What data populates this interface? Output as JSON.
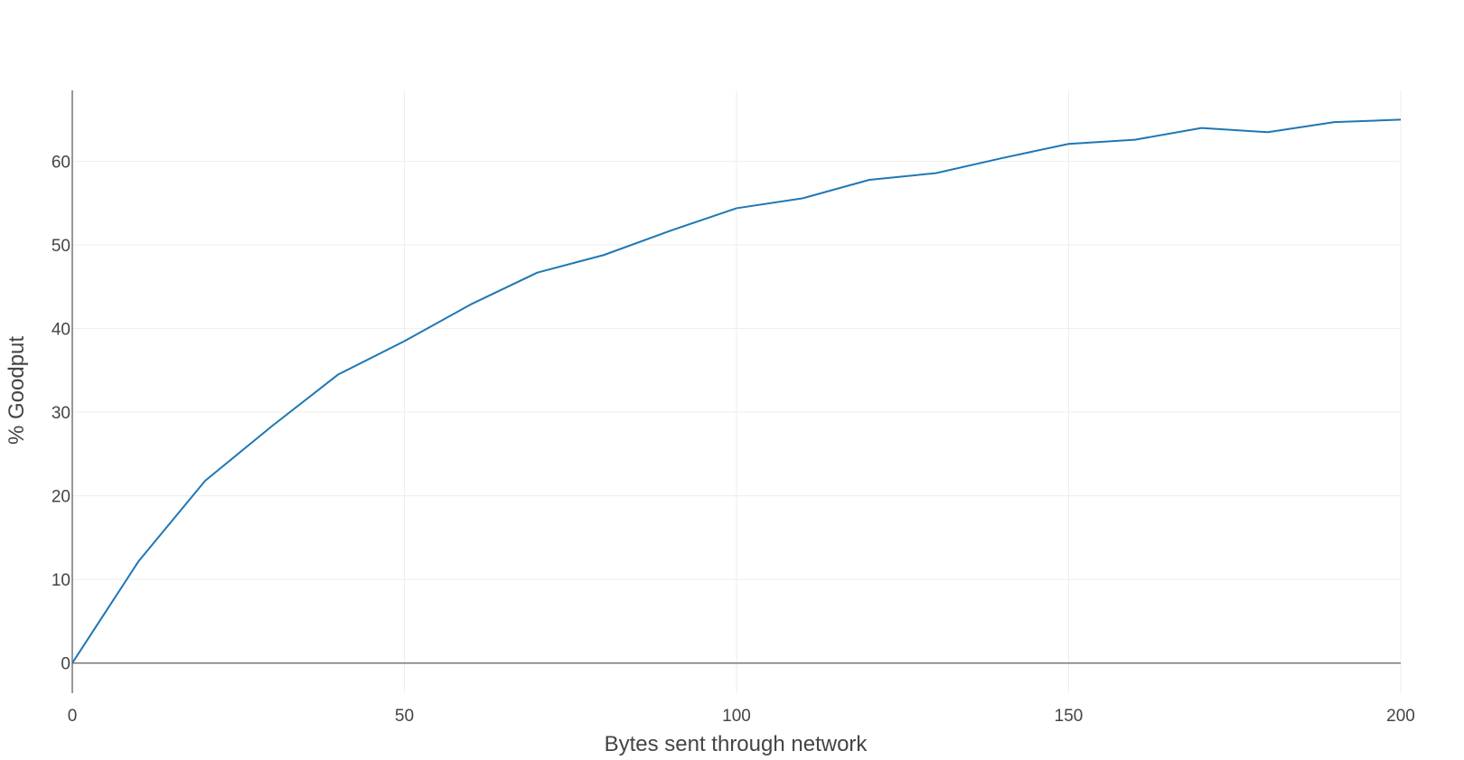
{
  "chart_data": {
    "type": "line",
    "xlabel": "Bytes sent through network",
    "ylabel": "% Goodput",
    "xlim": [
      0,
      200
    ],
    "ylim": [
      -3.6,
      68.5
    ],
    "x_ticks": [
      0,
      50,
      100,
      150,
      200
    ],
    "y_ticks": [
      0,
      10,
      20,
      30,
      40,
      50,
      60
    ],
    "grid": true,
    "series": [
      {
        "color": "#1f77b4",
        "x": [
          0,
          10,
          20,
          30,
          40,
          50,
          60,
          70,
          80,
          90,
          100,
          110,
          120,
          130,
          140,
          150,
          160,
          170,
          180,
          190,
          200
        ],
        "y": [
          0,
          12.2,
          21.8,
          28.3,
          34.5,
          38.5,
          42.9,
          46.7,
          48.8,
          51.7,
          54.4,
          55.6,
          57.8,
          58.6,
          60.4,
          62.1,
          62.6,
          64.0,
          63.5,
          64.7,
          65.0
        ]
      }
    ]
  }
}
